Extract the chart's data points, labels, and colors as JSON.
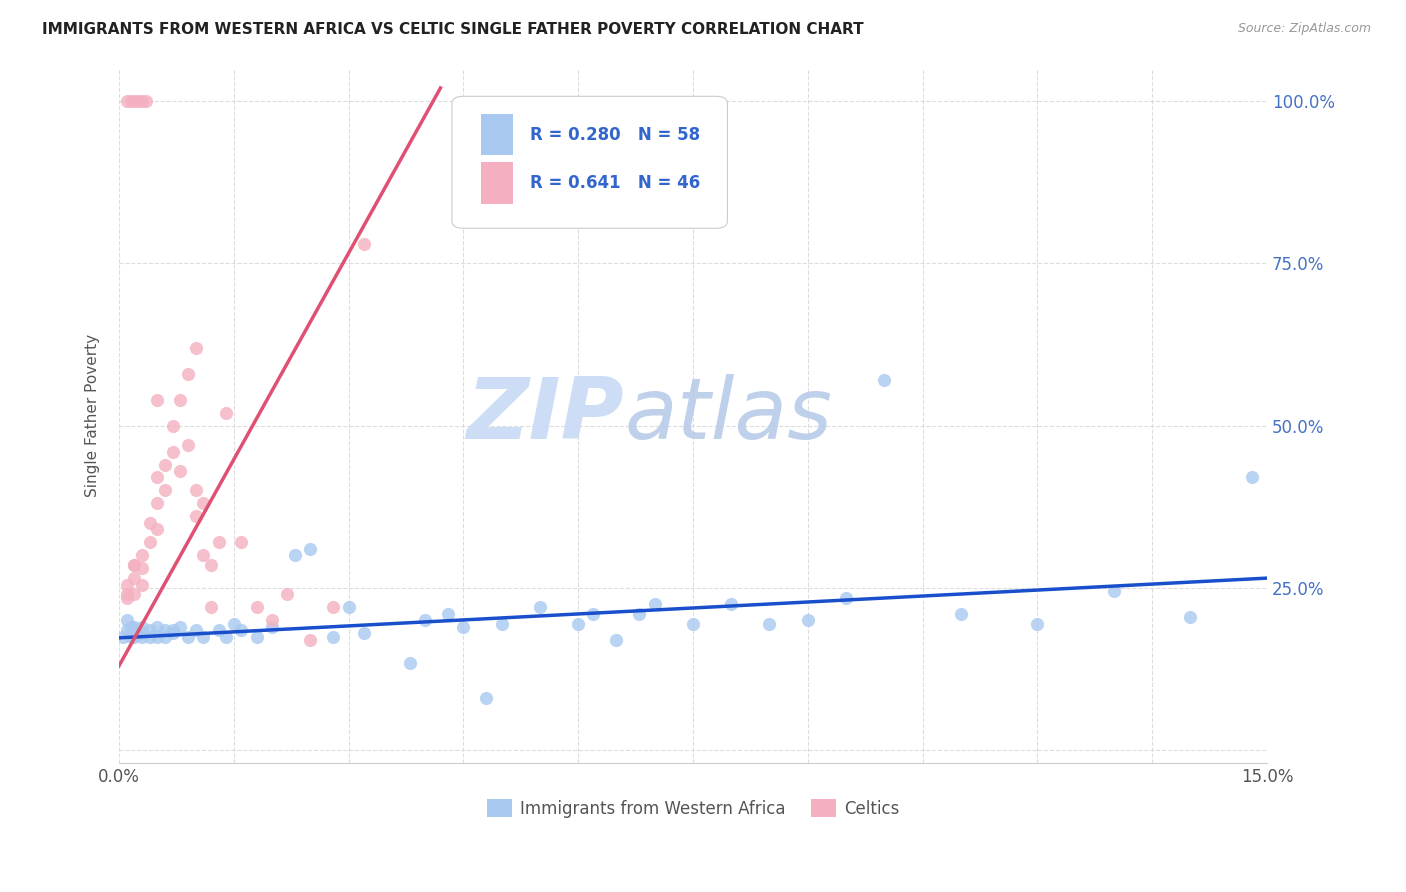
{
  "title": "IMMIGRANTS FROM WESTERN AFRICA VS CELTIC SINGLE FATHER POVERTY CORRELATION CHART",
  "source": "Source: ZipAtlas.com",
  "ylabel": "Single Father Poverty",
  "legend_blue_label": "Immigrants from Western Africa",
  "legend_pink_label": "Celtics",
  "legend_blue_R": "0.280",
  "legend_blue_N": "58",
  "legend_pink_R": "0.641",
  "legend_pink_N": "46",
  "blue_color": "#a8c8f0",
  "pink_color": "#f4b0c0",
  "blue_line_color": "#1a4fcc",
  "pink_line_color": "#e05070",
  "watermark_zip": "ZIP",
  "watermark_atlas": "atlas",
  "xlim": [
    0.0,
    0.15
  ],
  "ylim": [
    -0.02,
    1.05
  ],
  "blue_x": [
    0.0005,
    0.001,
    0.001,
    0.0015,
    0.0015,
    0.002,
    0.002,
    0.002,
    0.0025,
    0.003,
    0.003,
    0.003,
    0.004,
    0.004,
    0.005,
    0.005,
    0.006,
    0.006,
    0.007,
    0.007,
    0.008,
    0.009,
    0.01,
    0.011,
    0.013,
    0.014,
    0.015,
    0.016,
    0.018,
    0.02,
    0.023,
    0.025,
    0.028,
    0.03,
    0.032,
    0.038,
    0.04,
    0.043,
    0.045,
    0.048,
    0.05,
    0.055,
    0.06,
    0.062,
    0.065,
    0.068,
    0.07,
    0.075,
    0.08,
    0.085,
    0.09,
    0.095,
    0.1,
    0.11,
    0.12,
    0.13,
    0.14,
    0.148
  ],
  "blue_y": [
    0.175,
    0.2,
    0.185,
    0.19,
    0.175,
    0.18,
    0.175,
    0.19,
    0.18,
    0.19,
    0.175,
    0.18,
    0.185,
    0.175,
    0.19,
    0.175,
    0.185,
    0.175,
    0.18,
    0.185,
    0.19,
    0.175,
    0.185,
    0.175,
    0.185,
    0.175,
    0.195,
    0.185,
    0.175,
    0.19,
    0.3,
    0.31,
    0.175,
    0.22,
    0.18,
    0.135,
    0.2,
    0.21,
    0.19,
    0.08,
    0.195,
    0.22,
    0.195,
    0.21,
    0.17,
    0.21,
    0.225,
    0.195,
    0.225,
    0.195,
    0.2,
    0.235,
    0.57,
    0.21,
    0.195,
    0.245,
    0.205,
    0.42
  ],
  "pink_x": [
    0.005,
    0.008,
    0.009,
    0.01,
    0.01,
    0.011,
    0.011,
    0.012,
    0.013,
    0.001,
    0.001,
    0.001,
    0.002,
    0.002,
    0.002,
    0.002,
    0.003,
    0.003,
    0.003,
    0.004,
    0.004,
    0.005,
    0.005,
    0.005,
    0.006,
    0.006,
    0.007,
    0.007,
    0.008,
    0.009,
    0.01,
    0.012,
    0.014,
    0.016,
    0.018,
    0.02,
    0.022,
    0.025,
    0.028,
    0.032,
    0.001,
    0.0015,
    0.002,
    0.0025,
    0.003,
    0.0035
  ],
  "pink_y": [
    0.54,
    0.43,
    0.47,
    0.4,
    0.36,
    0.38,
    0.3,
    0.22,
    0.32,
    0.235,
    0.24,
    0.255,
    0.285,
    0.24,
    0.265,
    0.285,
    0.3,
    0.28,
    0.255,
    0.35,
    0.32,
    0.42,
    0.38,
    0.34,
    0.44,
    0.4,
    0.5,
    0.46,
    0.54,
    0.58,
    0.62,
    0.285,
    0.52,
    0.32,
    0.22,
    0.2,
    0.24,
    0.17,
    0.22,
    0.78,
    1.0,
    1.0,
    1.0,
    1.0,
    1.0,
    1.0
  ],
  "blue_trend_x": [
    0.0,
    0.15
  ],
  "blue_trend_y": [
    0.173,
    0.265
  ],
  "pink_trend_x": [
    0.0,
    0.042
  ],
  "pink_trend_y": [
    0.13,
    1.02
  ]
}
